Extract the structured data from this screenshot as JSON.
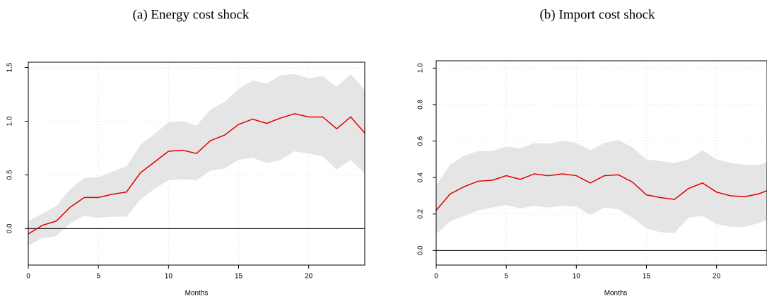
{
  "chart_data": [
    {
      "type": "line",
      "title": "(a) Energy cost shock",
      "xlabel": "Months",
      "x": [
        0,
        1,
        2,
        3,
        4,
        5,
        6,
        7,
        8,
        9,
        10,
        11,
        12,
        13,
        14,
        15,
        16,
        17,
        18,
        19,
        20,
        21,
        22,
        23,
        24
      ],
      "series": [
        {
          "color": "#e00000",
          "band_color": "#e5e5e5",
          "values": [
            -0.05,
            0.03,
            0.07,
            0.2,
            0.29,
            0.29,
            0.32,
            0.34,
            0.52,
            0.62,
            0.72,
            0.73,
            0.7,
            0.82,
            0.87,
            0.97,
            1.02,
            0.98,
            1.03,
            1.07,
            1.04,
            1.04,
            0.93,
            1.04,
            0.89
          ],
          "upper": [
            0.07,
            0.14,
            0.21,
            0.37,
            0.47,
            0.48,
            0.53,
            0.58,
            0.78,
            0.88,
            0.99,
            1.0,
            0.96,
            1.11,
            1.18,
            1.3,
            1.38,
            1.35,
            1.43,
            1.44,
            1.4,
            1.42,
            1.32,
            1.44,
            1.29
          ],
          "lower": [
            -0.16,
            -0.09,
            -0.07,
            0.05,
            0.12,
            0.1,
            0.11,
            0.11,
            0.27,
            0.37,
            0.45,
            0.46,
            0.45,
            0.54,
            0.56,
            0.64,
            0.66,
            0.61,
            0.64,
            0.72,
            0.7,
            0.67,
            0.55,
            0.64,
            0.51
          ]
        }
      ],
      "xlim": [
        0,
        24
      ],
      "xticks": [
        0,
        5,
        10,
        15,
        20
      ],
      "ylim": [
        -0.34,
        1.55
      ],
      "yticks": [
        {
          "value": 0,
          "label": "0.0"
        },
        0.5,
        {
          "value": 1,
          "label": "1.0"
        },
        1.5
      ],
      "grid": true,
      "hline": 0
    },
    {
      "type": "line",
      "title": "(b) Import cost shock",
      "xlabel": "Months",
      "x": [
        0,
        1,
        2,
        3,
        4,
        5,
        6,
        7,
        8,
        9,
        10,
        11,
        12,
        13,
        14,
        15,
        16,
        17,
        18,
        19,
        20,
        21,
        22,
        23,
        24
      ],
      "series": [
        {
          "color": "#e00000",
          "band_color": "#e5e5e5",
          "values": [
            0.22,
            0.31,
            0.35,
            0.38,
            0.385,
            0.41,
            0.39,
            0.42,
            0.41,
            0.42,
            0.41,
            0.37,
            0.41,
            0.415,
            0.375,
            0.305,
            0.29,
            0.28,
            0.34,
            0.37,
            0.32,
            0.3,
            0.295,
            0.31,
            0.34
          ],
          "upper": [
            0.36,
            0.47,
            0.52,
            0.545,
            0.545,
            0.57,
            0.56,
            0.59,
            0.585,
            0.6,
            0.59,
            0.55,
            0.59,
            0.605,
            0.565,
            0.5,
            0.49,
            0.48,
            0.5,
            0.55,
            0.5,
            0.48,
            0.47,
            0.47,
            0.49
          ],
          "lower": [
            0.09,
            0.16,
            0.19,
            0.22,
            0.235,
            0.25,
            0.23,
            0.245,
            0.235,
            0.245,
            0.24,
            0.195,
            0.235,
            0.225,
            0.18,
            0.12,
            0.1,
            0.095,
            0.18,
            0.19,
            0.145,
            0.13,
            0.13,
            0.15,
            0.18
          ]
        }
      ],
      "xlim": [
        0,
        23.6
      ],
      "xticks": [
        0,
        5,
        10,
        15,
        20
      ],
      "ylim": [
        -0.08,
        1.04
      ],
      "yticks": [
        {
          "value": 0,
          "label": "0.0"
        },
        0.2,
        0.4,
        0.6,
        0.8,
        {
          "value": 1,
          "label": "1.0"
        }
      ],
      "grid": true,
      "hline": 0
    }
  ]
}
